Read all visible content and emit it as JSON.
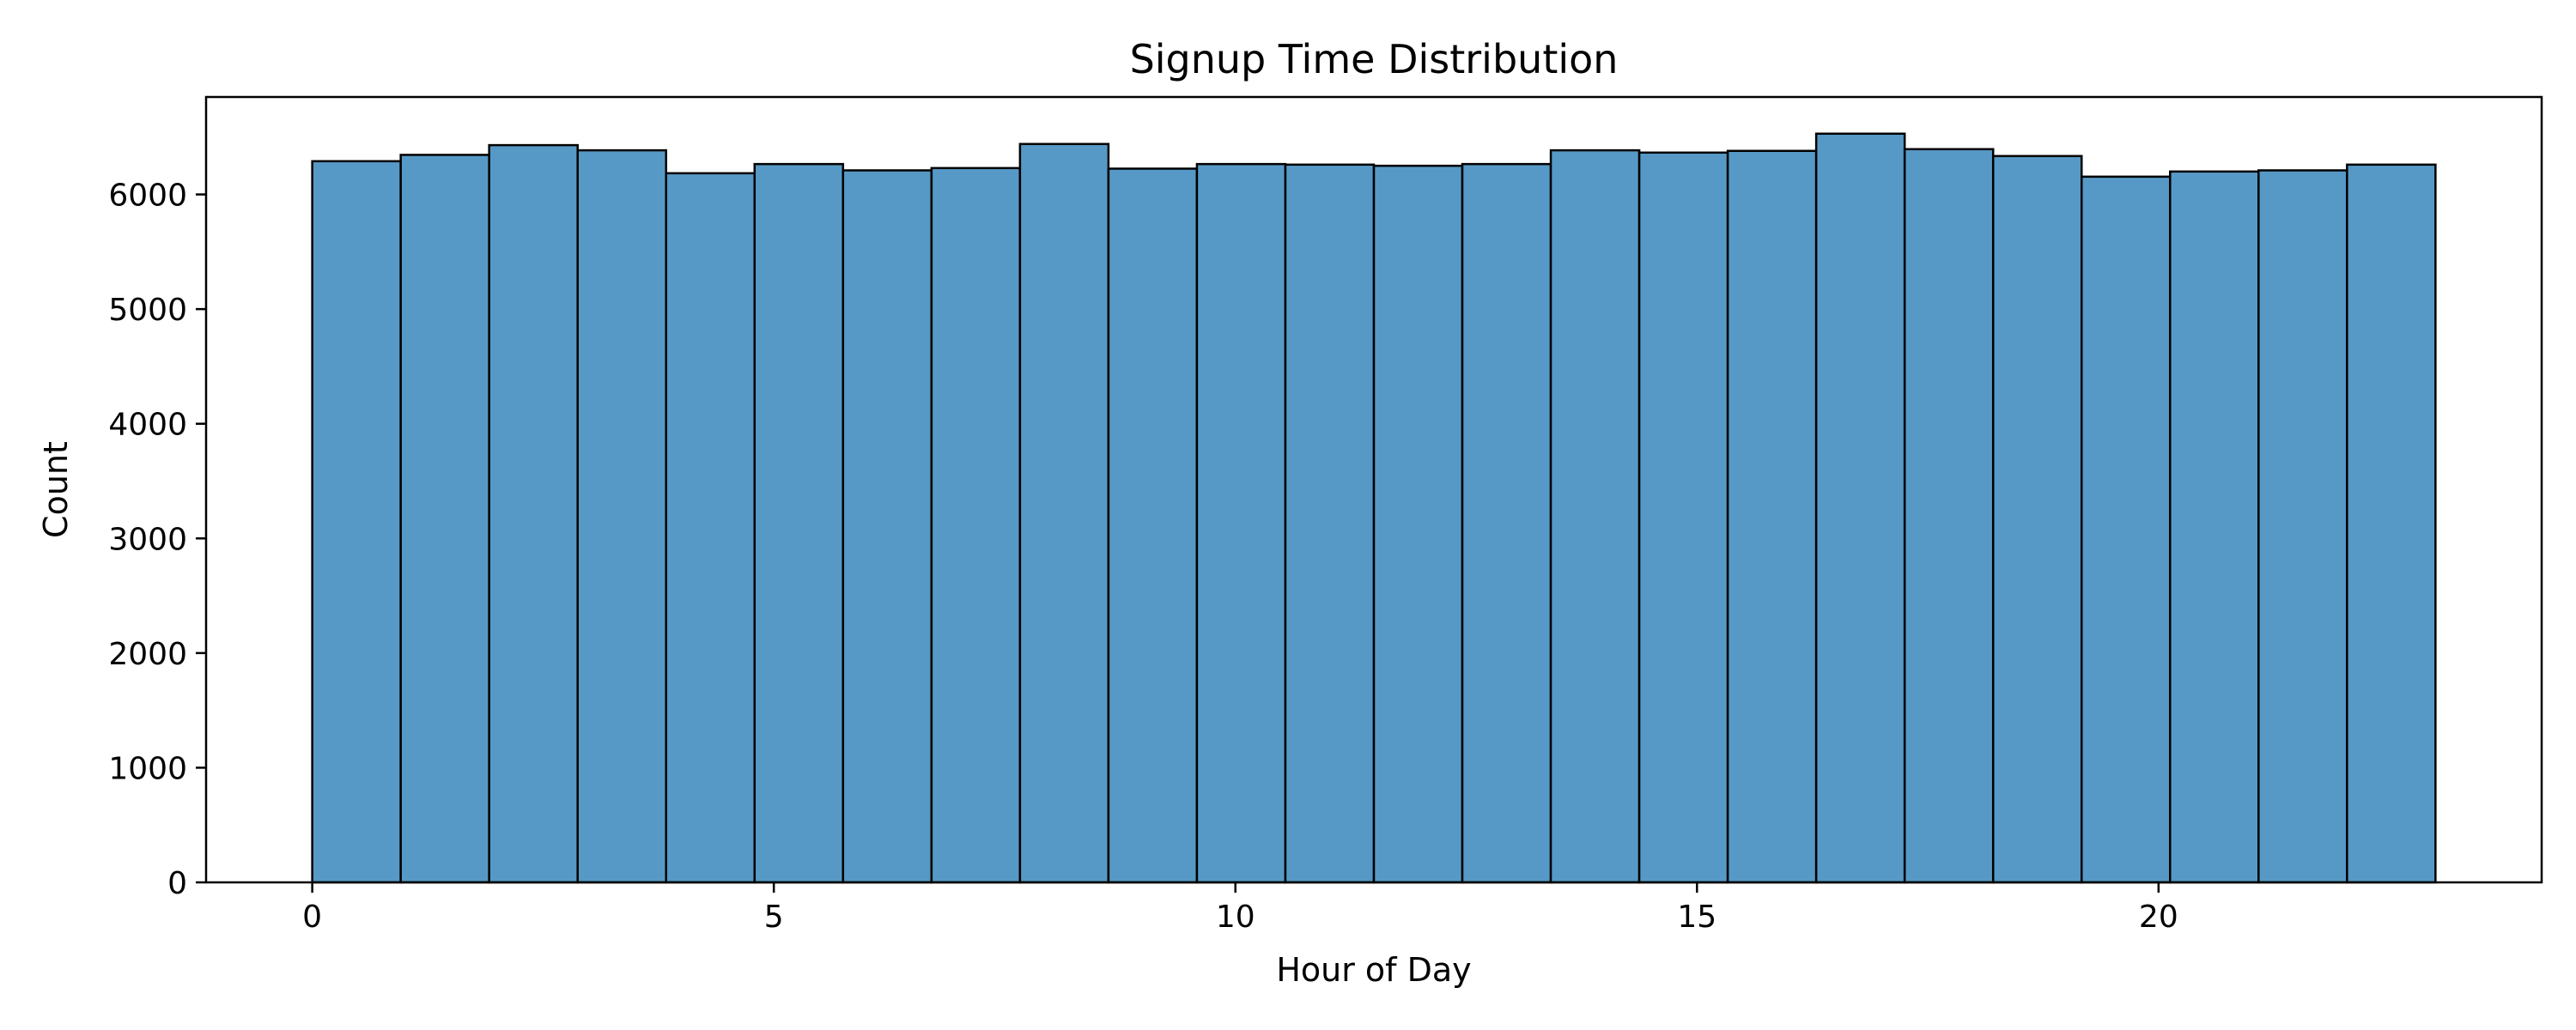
{
  "chart_data": {
    "type": "bar",
    "title": "Signup Time Distribution",
    "xlabel": "Hour of Day",
    "ylabel": "Count",
    "xlim": [
      -1.15,
      24.15
    ],
    "ylim": [
      0,
      6850
    ],
    "x_ticks": [
      0,
      5,
      10,
      15,
      20
    ],
    "y_ticks": [
      0,
      1000,
      2000,
      3000,
      4000,
      5000,
      6000
    ],
    "bin_start": 0,
    "bin_end": 23,
    "bin_count": 24,
    "values": [
      6290,
      6345,
      6430,
      6385,
      6185,
      6265,
      6210,
      6230,
      6440,
      6225,
      6265,
      6260,
      6250,
      6265,
      6385,
      6365,
      6380,
      6530,
      6395,
      6335,
      6155,
      6200,
      6210,
      6260
    ],
    "grid": false,
    "legend": "none",
    "bar_color": "#5799C6",
    "edge_color": "#000000"
  }
}
